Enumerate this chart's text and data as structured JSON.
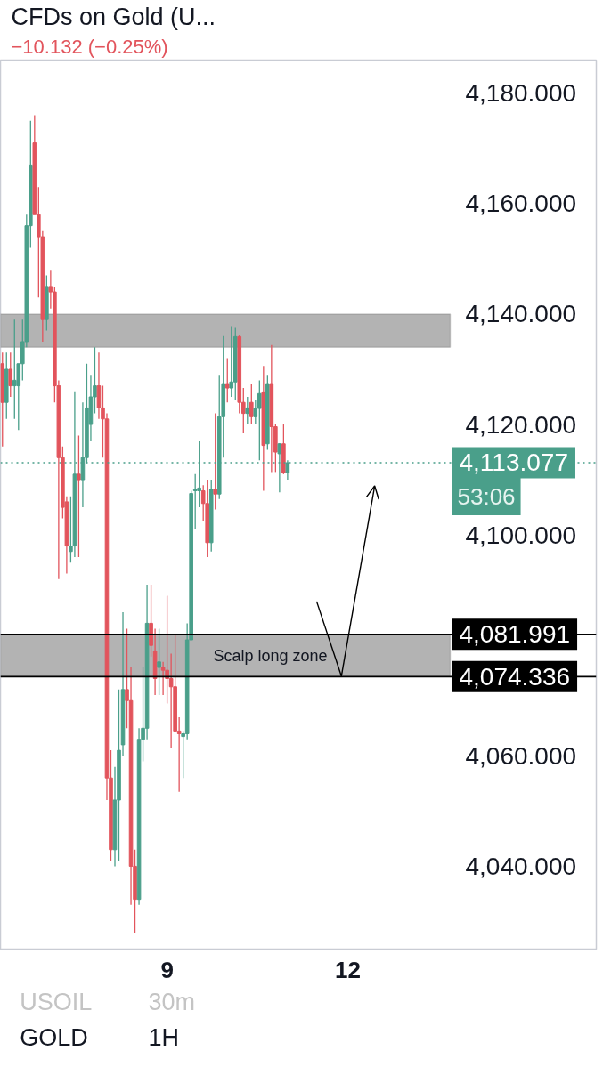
{
  "chart_data": {
    "type": "candlestick",
    "title": "CFDs on Gold (U...",
    "subtitle": "−10.132 (−0.25%)",
    "categories": [
      null,
      null,
      null,
      null,
      null,
      null,
      null,
      null,
      null,
      null,
      null,
      null,
      null,
      null,
      null,
      null,
      null,
      null,
      null,
      null,
      null,
      null,
      null,
      null,
      null,
      null,
      null,
      null,
      null,
      null,
      null,
      null,
      null,
      null,
      null,
      null,
      null,
      null,
      null,
      null,
      null,
      "9",
      null,
      null,
      null,
      null,
      null,
      null,
      null,
      null,
      null,
      null,
      null,
      null,
      null,
      null,
      null,
      null,
      null,
      null,
      null,
      null,
      null,
      null,
      null,
      null,
      null,
      null,
      null,
      null,
      null,
      null,
      null,
      null,
      null,
      null,
      null,
      null,
      null,
      null,
      null,
      null,
      null,
      null,
      null,
      null,
      "12",
      null,
      null,
      null,
      null,
      null,
      null,
      null,
      null,
      null,
      null,
      null,
      null,
      null,
      null,
      null,
      null,
      null,
      null,
      null,
      null,
      null,
      null,
      null,
      null,
      null
    ],
    "ohlc": [
      [
        4131,
        4133,
        4116,
        4124
      ],
      [
        4124,
        4133,
        4121,
        4130
      ],
      [
        4130,
        4133,
        4125,
        4127
      ],
      [
        4127,
        4139,
        4121,
        4128
      ],
      [
        4127,
        4131,
        4119,
        4131
      ],
      [
        4131,
        4139,
        4128,
        4135
      ],
      [
        4135,
        4158,
        4134,
        4156
      ],
      [
        4156,
        4175,
        4152,
        4167
      ],
      [
        4171,
        4176,
        4158,
        4158
      ],
      [
        4158,
        4163,
        4143,
        4154
      ],
      [
        4154,
        4155,
        4135,
        4139
      ],
      [
        4139,
        4147,
        4137,
        4145
      ],
      [
        4145,
        4148,
        4141,
        4144
      ],
      [
        4144,
        4145,
        4124,
        4127
      ],
      [
        4127,
        4128,
        4092,
        4114
      ],
      [
        4114,
        4116,
        4103,
        4105
      ],
      [
        4106,
        4107,
        4093,
        4098
      ],
      [
        4097,
        4107,
        4095,
        4098
      ],
      [
        4098,
        4126,
        4096,
        4111
      ],
      [
        4111,
        4118,
        4096,
        4110
      ],
      [
        4110,
        4124,
        4105,
        4114
      ],
      [
        4114,
        4131,
        4113,
        4123
      ],
      [
        4120,
        4129,
        4117,
        4125
      ],
      [
        4125,
        4134,
        4122,
        4127
      ],
      [
        4127,
        4133,
        4121,
        4123
      ],
      [
        4123,
        4127,
        4114,
        4121
      ],
      [
        4121,
        4122,
        4052,
        4056
      ],
      [
        4056,
        4061,
        4041,
        4043
      ],
      [
        4043,
        4058,
        4040,
        4052
      ],
      [
        4052,
        4072,
        4041,
        4061
      ],
      [
        4062,
        4086,
        4060,
        4072
      ],
      [
        4072,
        4083,
        4065,
        4070
      ],
      [
        4070,
        4076,
        4033,
        4040
      ],
      [
        4040,
        4043,
        4028,
        4034
      ],
      [
        4034,
        4065,
        4033,
        4063
      ],
      [
        4063,
        4076,
        4059,
        4065
      ],
      [
        4065,
        4091,
        4063,
        4084
      ],
      [
        4084,
        4091,
        4078,
        4080
      ],
      [
        4079,
        4083,
        4071,
        4074
      ],
      [
        4076,
        4083,
        4071,
        4077
      ],
      [
        4076,
        4077,
        4071,
        4075.5
      ],
      [
        4075.5,
        4089,
        4069.5,
        4074
      ],
      [
        4074,
        4078.5,
        4061.5,
        4072.5
      ],
      [
        4072.5,
        4082,
        4064.5,
        4064.5
      ],
      [
        4064.5,
        4067,
        4053.5,
        4064
      ],
      [
        4063.5,
        4064.5,
        4056,
        4064
      ],
      [
        4064,
        4084,
        4063,
        4081
      ],
      [
        4081,
        4108,
        4081,
        4107.5
      ],
      [
        4108,
        4111,
        4101,
        4108.3
      ],
      [
        4108,
        4117,
        4105,
        4108.5
      ],
      [
        4108,
        4109,
        4102.5,
        4105.7
      ],
      [
        4105.7,
        4110,
        4096,
        4098.6
      ],
      [
        4098.6,
        4110,
        4097,
        4108.3
      ],
      [
        4108.3,
        4122,
        4104.6,
        4107.4
      ],
      [
        4107.4,
        4129,
        4106.5,
        4121.4
      ],
      [
        4121.4,
        4136,
        4114,
        4127.4
      ],
      [
        4127.4,
        4132,
        4124,
        4126.6
      ],
      [
        4126.6,
        4137.8,
        4125,
        4127.7
      ],
      [
        4127.7,
        4137.5,
        4124.4,
        4135.9
      ],
      [
        4135.9,
        4136.2,
        4122,
        4124
      ],
      [
        4124,
        4126.6,
        4118.4,
        4122
      ],
      [
        4122,
        4125,
        4120,
        4123
      ],
      [
        4124,
        4127.4,
        4120,
        4121.4
      ],
      [
        4121.4,
        4124.4,
        4120,
        4122.9
      ],
      [
        4122.9,
        4128,
        4113.5,
        4125.6
      ],
      [
        4125.9,
        4130.6,
        4108,
        4116.2
      ],
      [
        4116.5,
        4129,
        4115.4,
        4127.4
      ],
      [
        4127.4,
        4134.4,
        4111.4,
        4119.6
      ],
      [
        4119.6,
        4120,
        4111.4,
        4115
      ],
      [
        4114.7,
        4116.6,
        4107.7,
        4116.5
      ],
      [
        4116.5,
        4120,
        4111,
        4111.3
      ],
      [
        4111.3,
        4113.5,
        4110,
        4113.077
      ],
      null,
      null,
      null,
      null,
      null,
      null,
      null,
      null,
      null,
      null,
      null,
      null,
      null,
      null,
      null,
      null,
      null,
      null,
      null,
      null,
      null,
      null,
      null,
      null,
      null,
      null,
      null,
      null,
      null,
      null,
      null,
      null,
      null,
      null,
      null,
      null,
      null,
      null,
      null,
      null
    ],
    "colors": [
      "#e2545c",
      "#4a9f8a",
      "#e2545c",
      "#4a9f8a",
      "#4a9f8a",
      "#4a9f8a",
      "#4a9f8a",
      "#4a9f8a",
      "#e2545c",
      "#e2545c",
      "#e2545c",
      "#4a9f8a",
      "#e2545c",
      "#e2545c",
      "#e2545c",
      "#e2545c",
      "#e2545c",
      "#4a9f8a",
      "#4a9f8a",
      "#e2545c",
      "#4a9f8a",
      "#4a9f8a",
      "#4a9f8a",
      "#4a9f8a",
      "#e2545c",
      "#e2545c",
      "#e2545c",
      "#e2545c",
      "#4a9f8a",
      "#4a9f8a",
      "#4a9f8a",
      "#e2545c",
      "#e2545c",
      "#e2545c",
      "#4a9f8a",
      "#4a9f8a",
      "#4a9f8a",
      "#e2545c",
      "#e2545c",
      "#4a9f8a",
      "#e2545c",
      "#e2545c",
      "#e2545c",
      "#e2545c",
      "#e2545c",
      "#4a9f8a",
      "#4a9f8a",
      "#4a9f8a",
      "#4a9f8a",
      "#4a9f8a",
      "#e2545c",
      "#e2545c",
      "#4a9f8a",
      "#e2545c",
      "#4a9f8a",
      "#4a9f8a",
      "#e2545c",
      "#4a9f8a",
      "#4a9f8a",
      "#e2545c",
      "#e2545c",
      "#4a9f8a",
      "#e2545c",
      "#4a9f8a",
      "#4a9f8a",
      "#e2545c",
      "#4a9f8a",
      "#e2545c",
      "#e2545c",
      "#4a9f8a",
      "#e2545c",
      "#4a9f8a",
      null,
      null,
      null,
      null,
      null,
      null,
      null,
      null,
      null,
      null,
      null,
      null,
      null,
      null,
      null,
      null,
      null,
      null,
      null,
      null,
      null,
      null,
      null,
      null,
      null,
      null,
      null,
      null,
      null,
      null,
      null,
      null,
      null,
      null,
      null,
      null,
      null,
      null,
      null,
      null
    ],
    "ylim": [
      4025,
      4186
    ],
    "yticks": [
      {
        "value": 4040,
        "label": "4,040.000"
      },
      {
        "value": 4060,
        "label": "4,060.000"
      },
      {
        "value": 4100,
        "label": "4,100.000"
      },
      {
        "value": 4120,
        "label": "4,120.000"
      },
      {
        "value": 4140,
        "label": "4,140.000"
      },
      {
        "value": 4160,
        "label": "4,160.000"
      },
      {
        "value": 4180,
        "label": "4,180.000"
      }
    ],
    "grid": false,
    "bands": [
      {
        "axis": "y",
        "from": 4134,
        "to": 4140,
        "color": "#b3b3b3"
      },
      {
        "axis": "y",
        "from": 4074.336,
        "to": 4081.991,
        "label": "Scalp long zone",
        "color": "#b3b3b3"
      }
    ],
    "ref_lines": [
      {
        "axis": "y",
        "value": 4113.077,
        "label": "4,113.077",
        "color": "#4a9f8a",
        "line_style": "dotted"
      },
      {
        "axis": "y",
        "value": 4081.991,
        "label": "4,081.991",
        "color": "#000000",
        "line_style": "solid"
      },
      {
        "axis": "y",
        "value": 4074.336,
        "label": "4,074.336",
        "color": "#000000",
        "line_style": "solid"
      }
    ],
    "annotations": [
      "53:06",
      "USOIL",
      "30m",
      "GOLD",
      "1H"
    ]
  }
}
